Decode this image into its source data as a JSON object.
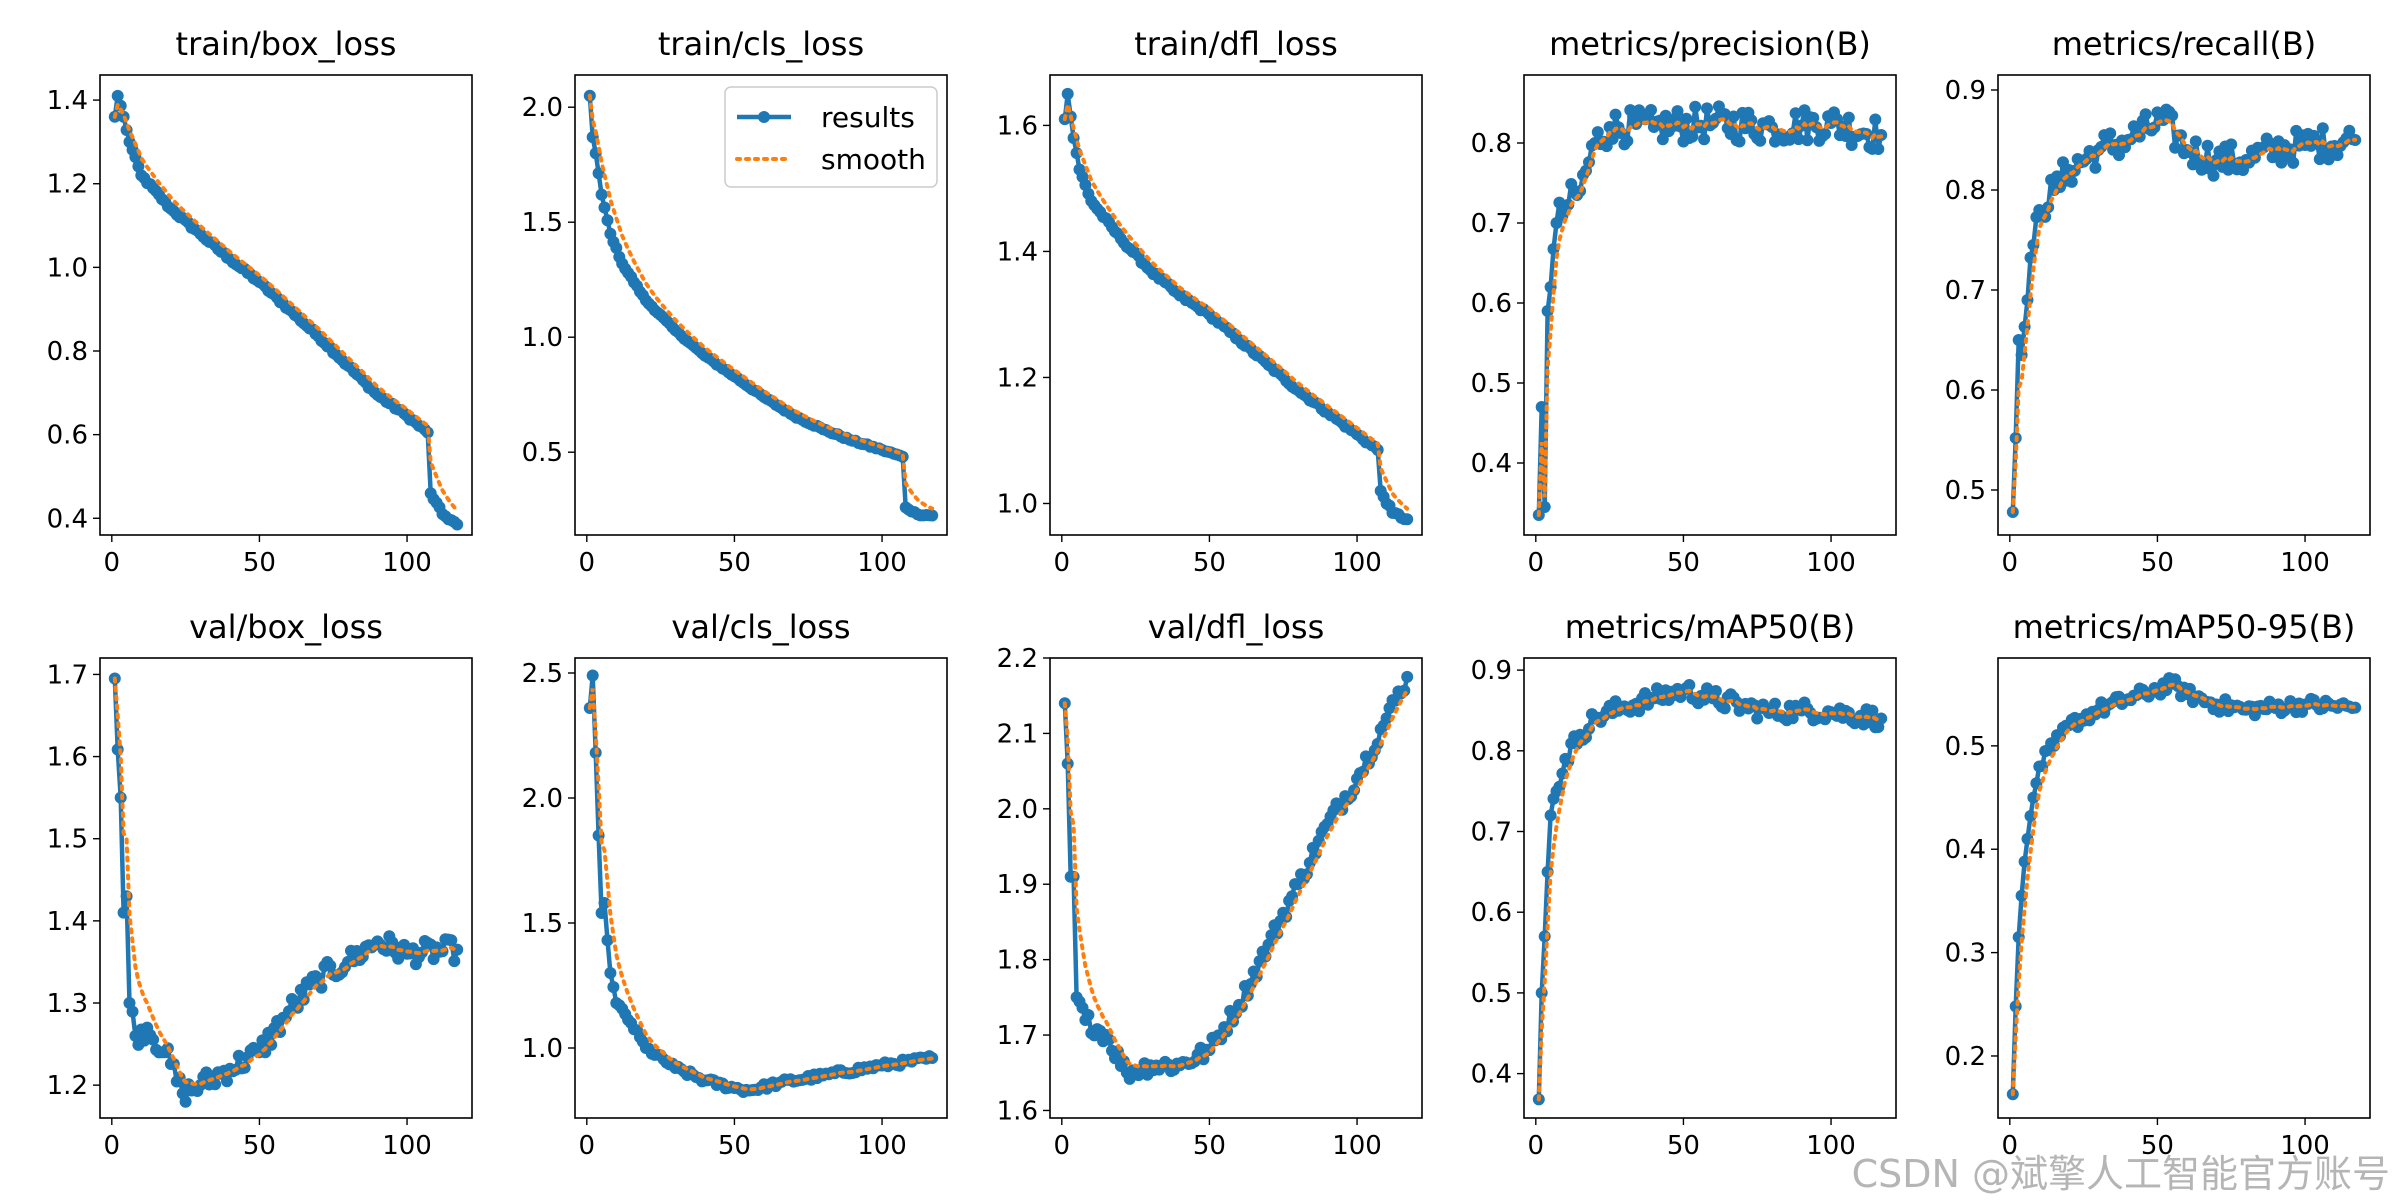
{
  "colors": {
    "results": "#1f77b4",
    "smooth": "#ff7f0e"
  },
  "legend": {
    "results_label": "results",
    "smooth_label": "smooth",
    "placement": "upper-right of train/cls_loss"
  },
  "watermark": "CSDN @斌擎人工智能官方账号",
  "chart_data": [
    {
      "type": "line",
      "title": "train/box_loss",
      "xlim": [
        -4,
        122
      ],
      "ylim": [
        0.36,
        1.46
      ],
      "xticks": [
        0,
        50,
        100
      ],
      "yticks": [
        0.4,
        0.6,
        0.8,
        1.0,
        1.2,
        1.4
      ],
      "ytick_format": 1,
      "keypoints": [
        [
          1,
          1.36
        ],
        [
          2,
          1.41
        ],
        [
          4,
          1.36
        ],
        [
          6,
          1.3
        ],
        [
          10,
          1.22
        ],
        [
          20,
          1.14
        ],
        [
          30,
          1.08
        ],
        [
          40,
          1.02
        ],
        [
          50,
          0.965
        ],
        [
          60,
          0.9
        ],
        [
          70,
          0.835
        ],
        [
          80,
          0.765
        ],
        [
          90,
          0.695
        ],
        [
          100,
          0.645
        ],
        [
          107,
          0.605
        ],
        [
          108,
          0.46
        ],
        [
          112,
          0.41
        ],
        [
          117,
          0.385
        ]
      ],
      "noise": 0.004,
      "smooth_alpha": 0.85
    },
    {
      "type": "line",
      "title": "train/cls_loss",
      "xlim": [
        -4,
        122
      ],
      "ylim": [
        0.14,
        2.14
      ],
      "xticks": [
        0,
        50,
        100
      ],
      "yticks": [
        0.5,
        1.0,
        1.5,
        2.0
      ],
      "ytick_format": 1,
      "legend": true,
      "keypoints": [
        [
          1,
          2.05
        ],
        [
          2,
          1.87
        ],
        [
          3,
          1.8
        ],
        [
          5,
          1.62
        ],
        [
          8,
          1.45
        ],
        [
          12,
          1.32
        ],
        [
          20,
          1.16
        ],
        [
          30,
          1.03
        ],
        [
          40,
          0.92
        ],
        [
          50,
          0.83
        ],
        [
          60,
          0.74
        ],
        [
          70,
          0.66
        ],
        [
          80,
          0.6
        ],
        [
          90,
          0.55
        ],
        [
          100,
          0.51
        ],
        [
          107,
          0.48
        ],
        [
          108,
          0.26
        ],
        [
          112,
          0.23
        ],
        [
          117,
          0.225
        ]
      ],
      "noise": 0.004,
      "smooth_alpha": 0.85
    },
    {
      "type": "line",
      "title": "train/dfl_loss",
      "xlim": [
        -4,
        122
      ],
      "ylim": [
        0.95,
        1.68
      ],
      "xticks": [
        0,
        50,
        100
      ],
      "yticks": [
        1.0,
        1.2,
        1.4,
        1.6
      ],
      "ytick_format": 1,
      "keypoints": [
        [
          1,
          1.61
        ],
        [
          2,
          1.65
        ],
        [
          4,
          1.58
        ],
        [
          6,
          1.53
        ],
        [
          10,
          1.48
        ],
        [
          20,
          1.42
        ],
        [
          30,
          1.37
        ],
        [
          40,
          1.33
        ],
        [
          50,
          1.3
        ],
        [
          60,
          1.26
        ],
        [
          70,
          1.22
        ],
        [
          80,
          1.18
        ],
        [
          90,
          1.145
        ],
        [
          100,
          1.11
        ],
        [
          107,
          1.085
        ],
        [
          108,
          1.02
        ],
        [
          112,
          0.985
        ],
        [
          117,
          0.975
        ]
      ],
      "noise": 0.003,
      "smooth_alpha": 0.85
    },
    {
      "type": "line",
      "title": "metrics/precision(B)",
      "xlim": [
        -4,
        122
      ],
      "ylim": [
        0.31,
        0.885
      ],
      "xticks": [
        0,
        50,
        100
      ],
      "yticks": [
        0.4,
        0.5,
        0.6,
        0.7,
        0.8
      ],
      "ytick_format": 1,
      "keypoints": [
        [
          1,
          0.335
        ],
        [
          2,
          0.47
        ],
        [
          3,
          0.345
        ],
        [
          4,
          0.59
        ],
        [
          5,
          0.62
        ],
        [
          7,
          0.7
        ],
        [
          10,
          0.72
        ],
        [
          15,
          0.74
        ],
        [
          20,
          0.8
        ],
        [
          25,
          0.82
        ],
        [
          40,
          0.82
        ],
        [
          60,
          0.825
        ],
        [
          80,
          0.82
        ],
        [
          100,
          0.825
        ],
        [
          117,
          0.81
        ]
      ],
      "noise": 0.022,
      "smooth_alpha": 0.65
    },
    {
      "type": "line",
      "title": "metrics/recall(B)",
      "xlim": [
        -4,
        122
      ],
      "ylim": [
        0.455,
        0.915
      ],
      "xticks": [
        0,
        50,
        100
      ],
      "yticks": [
        0.5,
        0.6,
        0.7,
        0.8,
        0.9
      ],
      "ytick_format": 1,
      "keypoints": [
        [
          1,
          0.478
        ],
        [
          2,
          0.552
        ],
        [
          3,
          0.65
        ],
        [
          4,
          0.635
        ],
        [
          6,
          0.69
        ],
        [
          8,
          0.745
        ],
        [
          10,
          0.78
        ],
        [
          15,
          0.8
        ],
        [
          20,
          0.82
        ],
        [
          30,
          0.84
        ],
        [
          40,
          0.85
        ],
        [
          52,
          0.87
        ],
        [
          60,
          0.84
        ],
        [
          70,
          0.83
        ],
        [
          80,
          0.83
        ],
        [
          90,
          0.84
        ],
        [
          100,
          0.845
        ],
        [
          117,
          0.85
        ]
      ],
      "noise": 0.017,
      "smooth_alpha": 0.65
    },
    {
      "type": "line",
      "title": "val/box_loss",
      "xlim": [
        -4,
        122
      ],
      "ylim": [
        1.16,
        1.72
      ],
      "xticks": [
        0,
        50,
        100
      ],
      "yticks": [
        1.2,
        1.3,
        1.4,
        1.5,
        1.6,
        1.7
      ],
      "ytick_format": 1,
      "keypoints": [
        [
          1,
          1.695
        ],
        [
          3,
          1.55
        ],
        [
          4,
          1.41
        ],
        [
          5,
          1.43
        ],
        [
          6,
          1.3
        ],
        [
          8,
          1.26
        ],
        [
          12,
          1.27
        ],
        [
          18,
          1.24
        ],
        [
          24,
          1.19
        ],
        [
          30,
          1.2
        ],
        [
          40,
          1.22
        ],
        [
          50,
          1.24
        ],
        [
          60,
          1.29
        ],
        [
          70,
          1.33
        ],
        [
          80,
          1.35
        ],
        [
          90,
          1.375
        ],
        [
          100,
          1.36
        ],
        [
          117,
          1.365
        ]
      ],
      "noise": 0.014,
      "smooth_alpha": 0.8
    },
    {
      "type": "line",
      "title": "val/cls_loss",
      "xlim": [
        -4,
        122
      ],
      "ylim": [
        0.72,
        2.56
      ],
      "xticks": [
        0,
        50,
        100
      ],
      "yticks": [
        1.0,
        1.5,
        2.0,
        2.5
      ],
      "ytick_format": 1,
      "keypoints": [
        [
          1,
          2.36
        ],
        [
          2,
          2.49
        ],
        [
          4,
          1.85
        ],
        [
          5,
          1.54
        ],
        [
          6,
          1.58
        ],
        [
          8,
          1.3
        ],
        [
          10,
          1.18
        ],
        [
          15,
          1.1
        ],
        [
          20,
          1.0
        ],
        [
          30,
          0.92
        ],
        [
          40,
          0.87
        ],
        [
          50,
          0.84
        ],
        [
          55,
          0.83
        ],
        [
          65,
          0.86
        ],
        [
          80,
          0.89
        ],
        [
          100,
          0.93
        ],
        [
          117,
          0.96
        ]
      ],
      "noise": 0.012,
      "smooth_alpha": 0.8
    },
    {
      "type": "line",
      "title": "val/dfl_loss",
      "xlim": [
        -4,
        122
      ],
      "ylim": [
        1.59,
        2.2
      ],
      "xticks": [
        0,
        50,
        100
      ],
      "yticks": [
        1.6,
        1.7,
        1.8,
        1.9,
        2.0,
        2.1,
        2.2
      ],
      "ytick_format": 1,
      "keypoints": [
        [
          1,
          2.14
        ],
        [
          2,
          2.06
        ],
        [
          3,
          1.91
        ],
        [
          4,
          1.91
        ],
        [
          5,
          1.75
        ],
        [
          8,
          1.72
        ],
        [
          15,
          1.7
        ],
        [
          22,
          1.65
        ],
        [
          30,
          1.66
        ],
        [
          40,
          1.66
        ],
        [
          50,
          1.68
        ],
        [
          60,
          1.74
        ],
        [
          70,
          1.82
        ],
        [
          80,
          1.9
        ],
        [
          90,
          1.98
        ],
        [
          100,
          2.04
        ],
        [
          110,
          2.12
        ],
        [
          117,
          2.175
        ]
      ],
      "noise": 0.012,
      "smooth_alpha": 0.8
    },
    {
      "type": "line",
      "title": "metrics/mAP50(B)",
      "xlim": [
        -4,
        122
      ],
      "ylim": [
        0.345,
        0.915
      ],
      "xticks": [
        0,
        50,
        100
      ],
      "yticks": [
        0.4,
        0.5,
        0.6,
        0.7,
        0.8,
        0.9
      ],
      "ytick_format": 1,
      "keypoints": [
        [
          1,
          0.368
        ],
        [
          2,
          0.5
        ],
        [
          3,
          0.57
        ],
        [
          4,
          0.65
        ],
        [
          5,
          0.72
        ],
        [
          7,
          0.75
        ],
        [
          10,
          0.79
        ],
        [
          15,
          0.82
        ],
        [
          20,
          0.84
        ],
        [
          30,
          0.855
        ],
        [
          40,
          0.865
        ],
        [
          50,
          0.875
        ],
        [
          60,
          0.865
        ],
        [
          70,
          0.855
        ],
        [
          80,
          0.848
        ],
        [
          90,
          0.85
        ],
        [
          100,
          0.848
        ],
        [
          117,
          0.84
        ]
      ],
      "noise": 0.012,
      "smooth_alpha": 0.7
    },
    {
      "type": "line",
      "title": "metrics/mAP50-95(B)",
      "xlim": [
        -4,
        122
      ],
      "ylim": [
        0.14,
        0.585
      ],
      "xticks": [
        0,
        50,
        100
      ],
      "yticks": [
        0.2,
        0.3,
        0.4,
        0.5
      ],
      "ytick_format": 1,
      "keypoints": [
        [
          1,
          0.163
        ],
        [
          2,
          0.248
        ],
        [
          3,
          0.315
        ],
        [
          4,
          0.355
        ],
        [
          6,
          0.41
        ],
        [
          8,
          0.45
        ],
        [
          10,
          0.48
        ],
        [
          15,
          0.5
        ],
        [
          20,
          0.52
        ],
        [
          30,
          0.535
        ],
        [
          40,
          0.545
        ],
        [
          50,
          0.555
        ],
        [
          55,
          0.56
        ],
        [
          60,
          0.55
        ],
        [
          70,
          0.54
        ],
        [
          80,
          0.535
        ],
        [
          100,
          0.54
        ],
        [
          117,
          0.537
        ]
      ],
      "noise": 0.007,
      "smooth_alpha": 0.7
    }
  ]
}
